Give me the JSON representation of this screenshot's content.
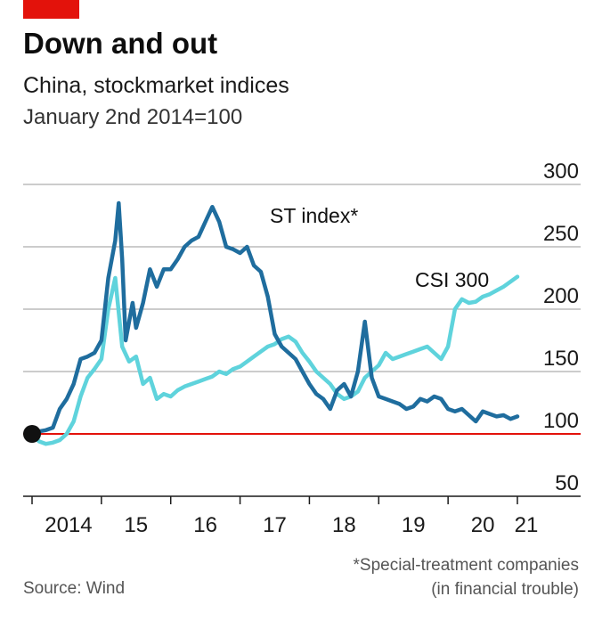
{
  "header": {
    "title": "Down and out",
    "subtitle": "China, stockmarket indices",
    "unit_note": "January 2nd 2014=100"
  },
  "footer": {
    "footnote_line1": "*Special-treatment companies",
    "footnote_line2": "(in financial trouble)",
    "source": "Source: Wind"
  },
  "colors": {
    "st_index": "#1f6d9e",
    "csi_300": "#5fd3dc",
    "baseline": "#e3120b",
    "grid": "#9a9a9a",
    "brand": "#e3120b"
  },
  "chart_data": {
    "type": "line",
    "title": "Down and out",
    "subtitle": "China, stockmarket indices",
    "ylabel": "January 2nd 2014=100",
    "xlabel": "",
    "ylim": [
      50,
      300
    ],
    "y_ticks": [
      50,
      100,
      150,
      200,
      250,
      300
    ],
    "y_tick_labels": [
      "50",
      "100",
      "150",
      "200",
      "250",
      "300"
    ],
    "x_range": [
      2014.0,
      2021.0
    ],
    "x_tick_labels": [
      "2014",
      "15",
      "16",
      "17",
      "18",
      "19",
      "20",
      "21"
    ],
    "grid": true,
    "baseline": 100,
    "series": [
      {
        "name": "ST index*",
        "x": [
          2014.0,
          2014.1,
          2014.2,
          2014.3,
          2014.4,
          2014.5,
          2014.6,
          2014.7,
          2014.8,
          2014.9,
          2015.0,
          2015.1,
          2015.2,
          2015.25,
          2015.3,
          2015.35,
          2015.4,
          2015.45,
          2015.5,
          2015.6,
          2015.7,
          2015.8,
          2015.9,
          2016.0,
          2016.1,
          2016.2,
          2016.3,
          2016.4,
          2016.5,
          2016.6,
          2016.7,
          2016.8,
          2016.9,
          2017.0,
          2017.1,
          2017.2,
          2017.3,
          2017.4,
          2017.5,
          2017.6,
          2017.7,
          2017.8,
          2017.9,
          2018.0,
          2018.1,
          2018.2,
          2018.3,
          2018.4,
          2018.5,
          2018.6,
          2018.7,
          2018.8,
          2018.9,
          2019.0,
          2019.1,
          2019.2,
          2019.3,
          2019.4,
          2019.5,
          2019.6,
          2019.7,
          2019.8,
          2019.9,
          2020.0,
          2020.1,
          2020.2,
          2020.3,
          2020.4,
          2020.5,
          2020.6,
          2020.7,
          2020.8,
          2020.9,
          2021.0
        ],
        "values": [
          100,
          102,
          103,
          105,
          120,
          128,
          140,
          160,
          162,
          165,
          175,
          225,
          255,
          285,
          240,
          175,
          190,
          205,
          185,
          205,
          232,
          218,
          232,
          232,
          240,
          250,
          255,
          258,
          270,
          282,
          270,
          250,
          248,
          245,
          250,
          235,
          230,
          210,
          180,
          170,
          165,
          160,
          150,
          140,
          132,
          128,
          120,
          135,
          140,
          130,
          150,
          190,
          145,
          130,
          128,
          126,
          124,
          120,
          122,
          128,
          126,
          130,
          128,
          120,
          118,
          120,
          115,
          110,
          118,
          116,
          114,
          115,
          112,
          114
        ]
      },
      {
        "name": "CSI 300",
        "x": [
          2014.0,
          2014.1,
          2014.2,
          2014.3,
          2014.4,
          2014.5,
          2014.6,
          2014.7,
          2014.8,
          2014.9,
          2015.0,
          2015.1,
          2015.2,
          2015.3,
          2015.4,
          2015.5,
          2015.6,
          2015.7,
          2015.8,
          2015.9,
          2016.0,
          2016.1,
          2016.2,
          2016.3,
          2016.4,
          2016.5,
          2016.6,
          2016.7,
          2016.8,
          2016.9,
          2017.0,
          2017.1,
          2017.2,
          2017.3,
          2017.4,
          2017.5,
          2017.6,
          2017.7,
          2017.8,
          2017.9,
          2018.0,
          2018.1,
          2018.2,
          2018.3,
          2018.4,
          2018.5,
          2018.6,
          2018.7,
          2018.8,
          2018.9,
          2019.0,
          2019.1,
          2019.2,
          2019.3,
          2019.4,
          2019.5,
          2019.6,
          2019.7,
          2019.8,
          2019.9,
          2020.0,
          2020.1,
          2020.2,
          2020.3,
          2020.4,
          2020.5,
          2020.6,
          2020.7,
          2020.8,
          2020.9,
          2021.0
        ],
        "values": [
          100,
          94,
          92,
          93,
          95,
          100,
          110,
          130,
          145,
          152,
          160,
          200,
          225,
          170,
          158,
          162,
          140,
          145,
          128,
          132,
          130,
          135,
          138,
          140,
          142,
          144,
          146,
          150,
          148,
          152,
          154,
          158,
          162,
          166,
          170,
          172,
          176,
          178,
          174,
          165,
          158,
          150,
          145,
          140,
          132,
          128,
          130,
          134,
          145,
          150,
          155,
          165,
          160,
          162,
          164,
          166,
          168,
          170,
          165,
          160,
          170,
          200,
          208,
          205,
          206,
          210,
          212,
          215,
          218,
          222,
          226
        ]
      }
    ]
  }
}
